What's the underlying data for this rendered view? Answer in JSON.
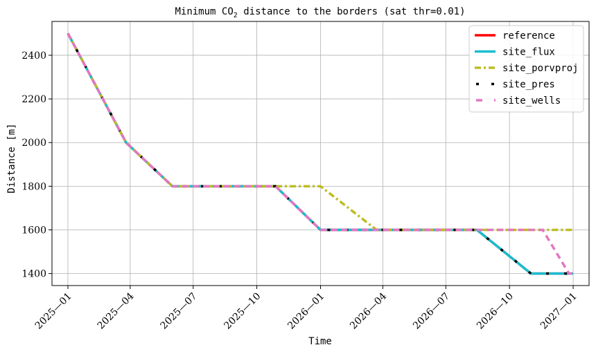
{
  "chart_data": {
    "type": "line",
    "title_pre": "Minimum CO",
    "title_sub": "2",
    "title_post": " distance to the borders (sat thr=0.01)",
    "xlabel": "Time",
    "ylabel": "Distance [m]",
    "grid": true,
    "legend_position": "top-right",
    "x_ticks": [
      {
        "date": "2025-01-01",
        "label": "2025—01"
      },
      {
        "date": "2025-04-01",
        "label": "2025—04"
      },
      {
        "date": "2025-07-01",
        "label": "2025—07"
      },
      {
        "date": "2025-10-01",
        "label": "2025—10"
      },
      {
        "date": "2026-01-01",
        "label": "2026—01"
      },
      {
        "date": "2026-04-01",
        "label": "2026—04"
      },
      {
        "date": "2026-07-01",
        "label": "2026—07"
      },
      {
        "date": "2026-10-01",
        "label": "2026—10"
      },
      {
        "date": "2027-01-01",
        "label": "2027—01"
      }
    ],
    "x_range": [
      "2024-12-09",
      "2027-01-24"
    ],
    "y_ticks": [
      1400,
      1600,
      1800,
      2000,
      2200,
      2400
    ],
    "y_range": [
      1345,
      2555
    ],
    "series": [
      {
        "name": "reference",
        "color": "#ff0000",
        "style": "solid",
        "points": [
          {
            "x": "2025-01-01",
            "y": 2500
          },
          {
            "x": "2025-03-26",
            "y": 2000
          },
          {
            "x": "2025-06-01",
            "y": 1800
          },
          {
            "x": "2025-10-28",
            "y": 1800
          },
          {
            "x": "2026-01-01",
            "y": 1600
          },
          {
            "x": "2026-08-15",
            "y": 1600
          },
          {
            "x": "2026-11-01",
            "y": 1400
          },
          {
            "x": "2027-01-01",
            "y": 1400
          }
        ]
      },
      {
        "name": "site_flux",
        "color": "#17becf",
        "style": "solid",
        "points": [
          {
            "x": "2025-01-01",
            "y": 2500
          },
          {
            "x": "2025-03-26",
            "y": 2000
          },
          {
            "x": "2025-06-01",
            "y": 1800
          },
          {
            "x": "2025-10-28",
            "y": 1800
          },
          {
            "x": "2026-01-01",
            "y": 1600
          },
          {
            "x": "2026-08-15",
            "y": 1600
          },
          {
            "x": "2026-11-01",
            "y": 1400
          },
          {
            "x": "2027-01-01",
            "y": 1400
          }
        ]
      },
      {
        "name": "site_porvproj",
        "color": "#bcbd22",
        "style": "dashdot",
        "points": [
          {
            "x": "2025-01-01",
            "y": 2500
          },
          {
            "x": "2025-03-26",
            "y": 2000
          },
          {
            "x": "2025-06-01",
            "y": 1800
          },
          {
            "x": "2026-01-01",
            "y": 1800
          },
          {
            "x": "2026-03-23",
            "y": 1600
          },
          {
            "x": "2027-01-01",
            "y": 1600
          }
        ]
      },
      {
        "name": "site_pres",
        "color": "#000000",
        "style": "sparse-dash",
        "points": [
          {
            "x": "2025-01-01",
            "y": 2500
          },
          {
            "x": "2025-03-26",
            "y": 2000
          },
          {
            "x": "2025-06-01",
            "y": 1800
          },
          {
            "x": "2025-10-28",
            "y": 1800
          },
          {
            "x": "2026-01-01",
            "y": 1600
          },
          {
            "x": "2026-08-15",
            "y": 1600
          },
          {
            "x": "2026-11-01",
            "y": 1400
          },
          {
            "x": "2027-01-01",
            "y": 1400
          }
        ]
      },
      {
        "name": "site_wells",
        "color": "#e377c2",
        "style": "dashed",
        "points": [
          {
            "x": "2025-01-01",
            "y": 2500
          },
          {
            "x": "2025-03-26",
            "y": 2000
          },
          {
            "x": "2025-06-01",
            "y": 1800
          },
          {
            "x": "2025-10-28",
            "y": 1800
          },
          {
            "x": "2026-01-01",
            "y": 1600
          },
          {
            "x": "2026-11-18",
            "y": 1600
          },
          {
            "x": "2026-12-26",
            "y": 1400
          },
          {
            "x": "2027-01-01",
            "y": 1400
          }
        ]
      }
    ]
  }
}
